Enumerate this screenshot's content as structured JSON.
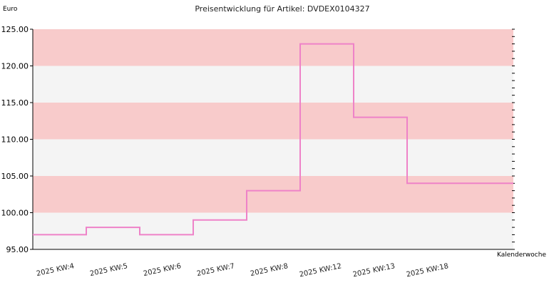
{
  "chart_data": {
    "type": "line",
    "step": true,
    "title": "Preisentwicklung für Artikel: DVDEX0104327",
    "ylabel": "Euro",
    "xlabel": "Kalenderwoche",
    "ylim": [
      95,
      125
    ],
    "y_ticks": [
      "95.00",
      "100.00",
      "105.00",
      "110.00",
      "115.00",
      "120.00",
      "125.00"
    ],
    "categories": [
      "2025 KW:4",
      "2025 KW:5",
      "2025 KW:6",
      "2025 KW:7",
      "2025 KW:8",
      "2025 KW:12",
      "2025 KW:13",
      "2025 KW:18"
    ],
    "series": [
      {
        "values": [
          97,
          98,
          97,
          99,
          103,
          123,
          113,
          104
        ]
      }
    ],
    "grid": false,
    "background_bands": true,
    "colors": {
      "line": "#ee82c8",
      "band_dark": "#f8cbcb",
      "band_light": "#f4f4f4",
      "axis": "#000000"
    }
  }
}
